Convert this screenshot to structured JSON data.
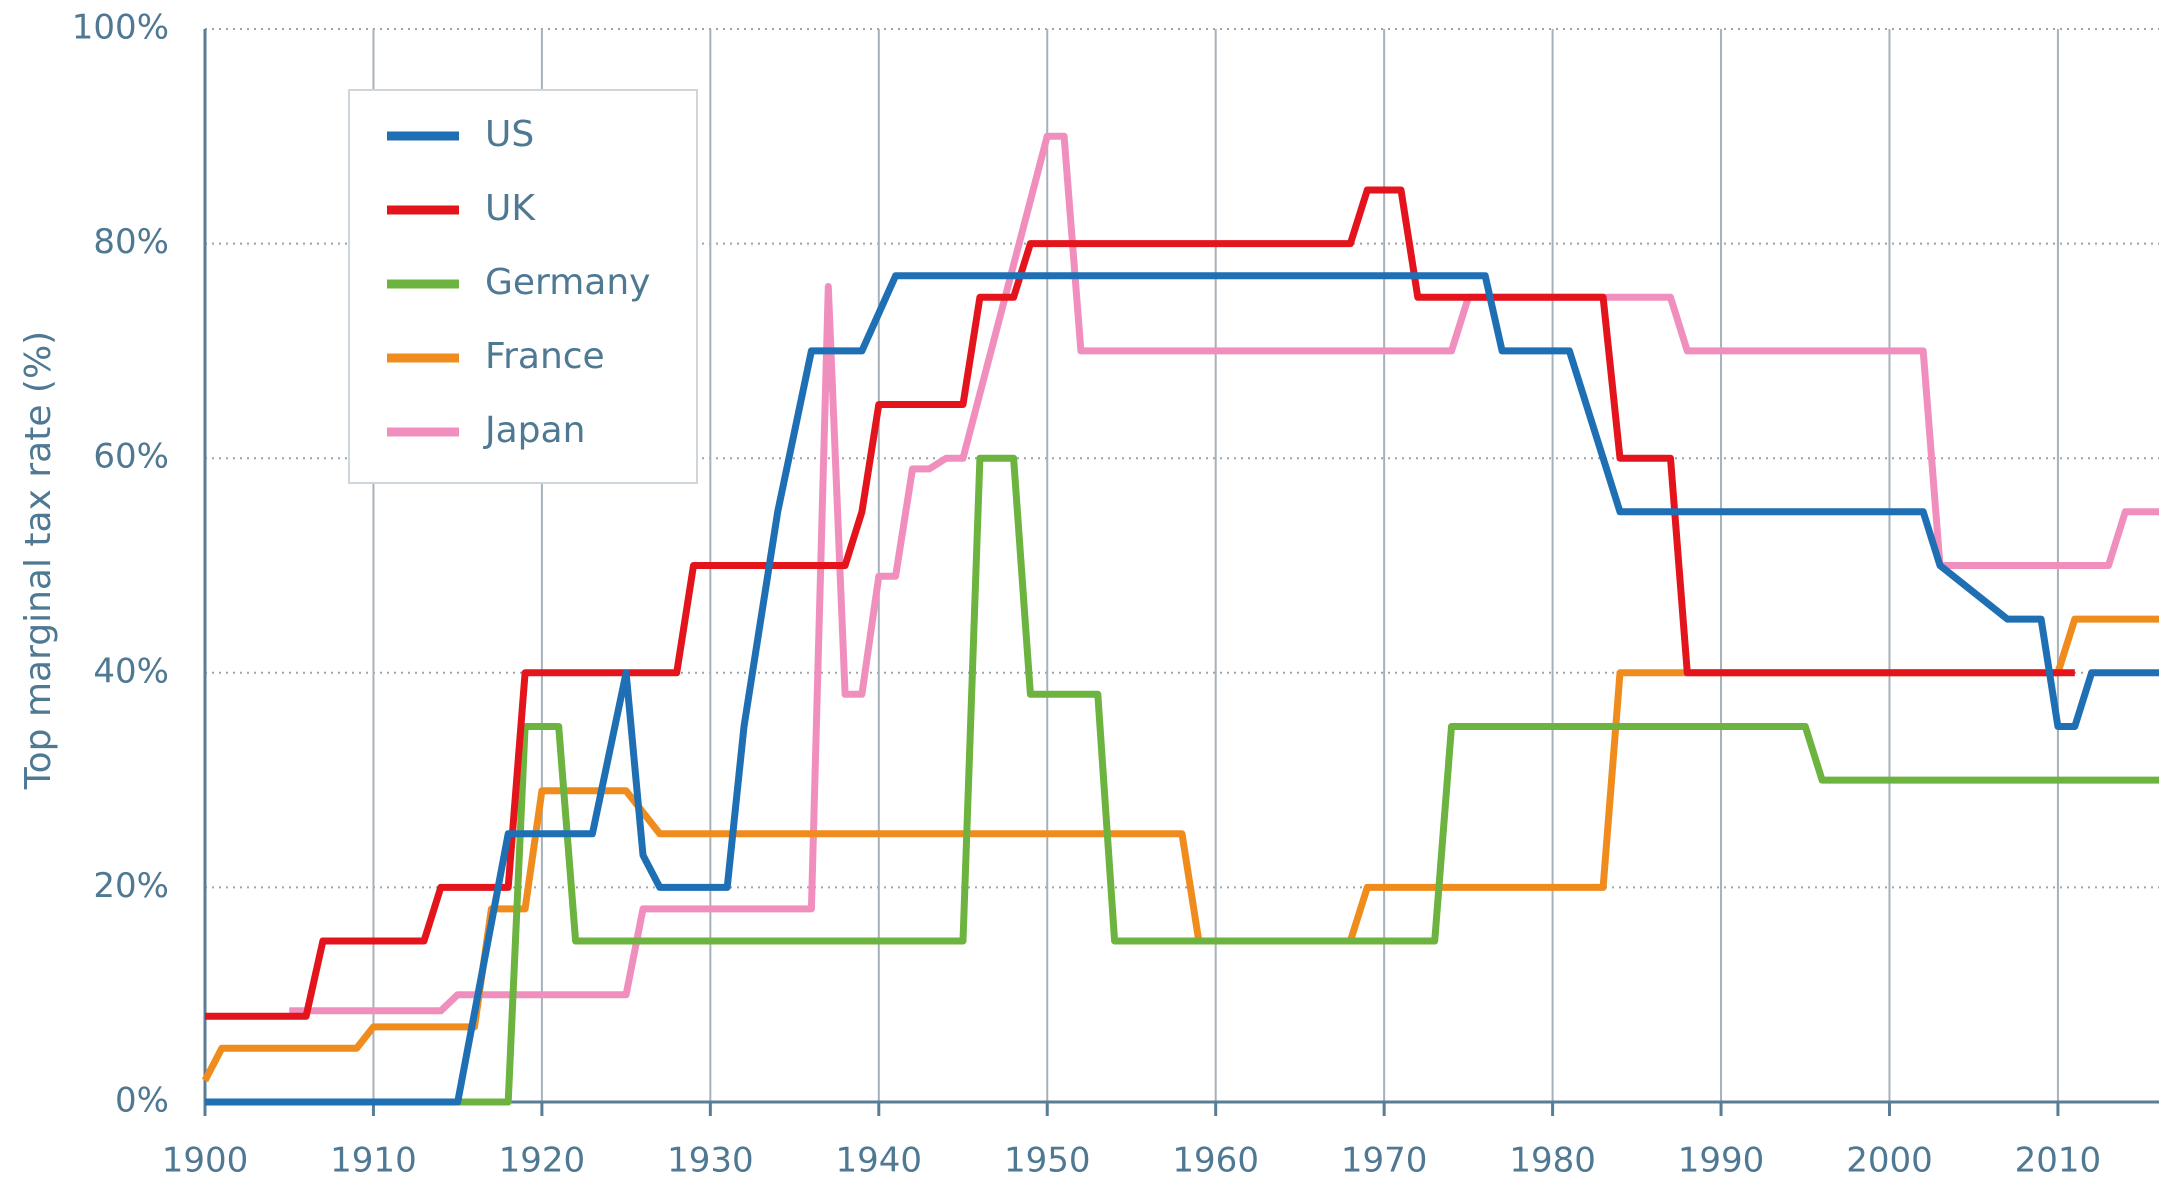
{
  "chart_data": {
    "type": "line",
    "y_label": "Top marginal tax rate (%)",
    "xlim": [
      1900,
      2016
    ],
    "ylim": [
      0,
      100
    ],
    "xticks": [
      1900,
      1910,
      1920,
      1930,
      1940,
      1950,
      1960,
      1970,
      1980,
      1990,
      2000,
      2010
    ],
    "yticks": [
      {
        "value": 0,
        "label": "0%"
      },
      {
        "value": 20,
        "label": "20%"
      },
      {
        "value": 40,
        "label": "40%"
      },
      {
        "value": 60,
        "label": "60%"
      },
      {
        "value": 80,
        "label": "80%"
      },
      {
        "value": 100,
        "label": "100%"
      }
    ],
    "grid": true,
    "legend": "upper left",
    "series": [
      {
        "name": "US",
        "color": "#1f6fb5",
        "x": [
          1900,
          1915,
          1918,
          1923,
          1925,
          1926,
          1927,
          1931,
          1932,
          1934,
          1936,
          1939,
          1941,
          1976,
          1977,
          1981,
          1984,
          2002,
          2003,
          2007,
          2009,
          2010,
          2011,
          2012,
          2016
        ],
        "values": [
          0,
          0,
          25,
          25,
          40,
          23,
          20,
          20,
          35,
          55,
          70,
          70,
          77,
          77,
          70,
          70,
          55,
          55,
          50,
          45,
          45,
          35,
          35,
          40,
          40
        ]
      },
      {
        "name": "UK",
        "color": "#e3141c",
        "x": [
          1900,
          1906,
          1907,
          1913,
          1914,
          1918,
          1919,
          1928,
          1929,
          1938,
          1939,
          1940,
          1945,
          1946,
          1948,
          1949,
          1968,
          1969,
          1971,
          1972,
          1983,
          1984,
          1987,
          1988,
          2011
        ],
        "values": [
          8,
          8,
          15,
          15,
          20,
          20,
          40,
          40,
          50,
          50,
          55,
          65,
          65,
          75,
          75,
          80,
          80,
          85,
          85,
          75,
          75,
          60,
          60,
          40,
          40
        ]
      },
      {
        "name": "Germany",
        "color": "#6db33f",
        "x": [
          1915,
          1918,
          1919,
          1921,
          1922,
          1945,
          1946,
          1948,
          1949,
          1953,
          1954,
          1973,
          1974,
          1995,
          1996,
          2016
        ],
        "values": [
          0,
          0,
          35,
          35,
          15,
          15,
          60,
          60,
          38,
          38,
          15,
          15,
          35,
          35,
          30,
          30
        ]
      },
      {
        "name": "France",
        "color": "#f08c1e",
        "x": [
          1900,
          1901,
          1909,
          1910,
          1916,
          1917,
          1919,
          1920,
          1925,
          1927,
          1958,
          1959,
          1968,
          1969,
          1983,
          1984,
          2010,
          2011,
          2016
        ],
        "values": [
          2,
          5,
          5,
          7,
          7,
          18,
          18,
          29,
          29,
          25,
          25,
          15,
          15,
          20,
          20,
          40,
          40,
          45,
          45
        ]
      },
      {
        "name": "Japan",
        "color": "#f08fbd",
        "x": [
          1905,
          1914,
          1915,
          1925,
          1926,
          1936,
          1937,
          1938,
          1939,
          1940,
          1941,
          1942,
          1943,
          1944,
          1945,
          1950,
          1951,
          1952,
          1974,
          1975,
          1987,
          1988,
          2002,
          2003,
          2013,
          2014,
          2016
        ],
        "values": [
          8.5,
          8.5,
          10,
          10,
          18,
          18,
          76,
          38,
          38,
          49,
          49,
          59,
          59,
          60,
          60,
          90,
          90,
          70,
          70,
          75,
          75,
          70,
          70,
          50,
          50,
          55,
          55
        ]
      }
    ]
  }
}
